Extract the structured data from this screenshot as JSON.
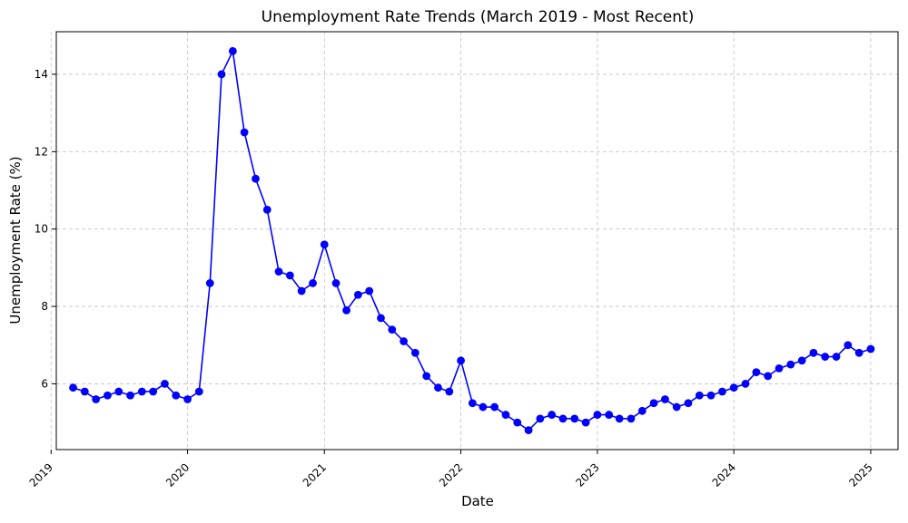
{
  "chart_data": {
    "type": "line",
    "title": "Unemployment Rate Trends (March 2019 - Most Recent)",
    "xlabel": "Date",
    "ylabel": "Unemployment Rate (%)",
    "x_ticks": [
      "2019",
      "2020",
      "2021",
      "2022",
      "2023",
      "2024",
      "2025"
    ],
    "y_ticks": [
      6,
      8,
      10,
      12,
      14
    ],
    "xlim": [
      "2019-01-15",
      "2025-03-15"
    ],
    "ylim": [
      4.3,
      15.1
    ],
    "grid": true,
    "colors": {
      "line": "#0000ff",
      "grid": "#b0b0b0",
      "axis": "#000000"
    },
    "series": [
      {
        "x": [
          "2019-03-01",
          "2019-04-01",
          "2019-05-01",
          "2019-06-01",
          "2019-07-01",
          "2019-08-01",
          "2019-09-01",
          "2019-10-01",
          "2019-11-01",
          "2019-12-01",
          "2020-01-01",
          "2020-02-01",
          "2020-03-01",
          "2020-04-01",
          "2020-05-01",
          "2020-06-01",
          "2020-07-01",
          "2020-08-01",
          "2020-09-01",
          "2020-10-01",
          "2020-11-01",
          "2020-12-01",
          "2021-01-01",
          "2021-02-01",
          "2021-03-01",
          "2021-04-01",
          "2021-05-01",
          "2021-06-01",
          "2021-07-01",
          "2021-08-01",
          "2021-09-01",
          "2021-10-01",
          "2021-11-01",
          "2021-12-01",
          "2022-01-01",
          "2022-02-01",
          "2022-03-01",
          "2022-04-01",
          "2022-05-01",
          "2022-06-01",
          "2022-07-01",
          "2022-08-01",
          "2022-09-01",
          "2022-10-01",
          "2022-11-01",
          "2022-12-01",
          "2023-01-01",
          "2023-02-01",
          "2023-03-01",
          "2023-04-01",
          "2023-05-01",
          "2023-06-01",
          "2023-07-01",
          "2023-08-01",
          "2023-09-01",
          "2023-10-01",
          "2023-11-01",
          "2023-12-01",
          "2024-01-01",
          "2024-02-01",
          "2024-03-01",
          "2024-04-01",
          "2024-05-01",
          "2024-06-01",
          "2024-07-01",
          "2024-08-01",
          "2024-09-01",
          "2024-10-01",
          "2024-11-01",
          "2024-12-01",
          "2025-01-01"
        ],
        "y": [
          5.9,
          5.8,
          5.6,
          5.7,
          5.8,
          5.7,
          5.8,
          5.8,
          6.0,
          5.7,
          5.6,
          5.8,
          8.6,
          14.0,
          14.6,
          12.5,
          11.3,
          10.5,
          8.9,
          8.8,
          8.4,
          8.6,
          9.6,
          8.6,
          7.9,
          8.3,
          8.4,
          7.7,
          7.4,
          7.1,
          6.8,
          6.2,
          5.9,
          5.8,
          6.6,
          5.5,
          5.4,
          5.4,
          5.2,
          5.0,
          4.8,
          5.1,
          5.2,
          5.1,
          5.1,
          5.0,
          5.2,
          5.2,
          5.1,
          5.1,
          5.3,
          5.5,
          5.6,
          5.4,
          5.5,
          5.7,
          5.7,
          5.8,
          5.9,
          6.0,
          6.3,
          6.2,
          6.4,
          6.5,
          6.6,
          6.8,
          6.7,
          6.7,
          7.0,
          6.8,
          6.9
        ]
      }
    ]
  }
}
